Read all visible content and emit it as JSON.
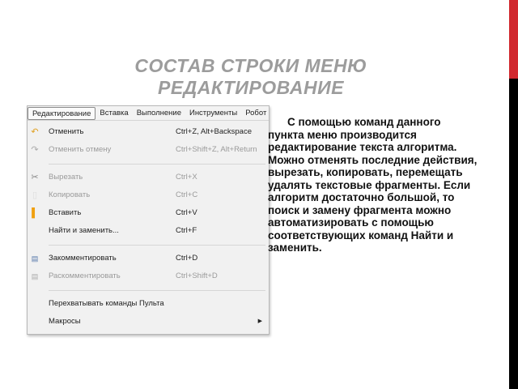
{
  "title": "СОСТАВ СТРОКИ МЕНЮ РЕДАКТИРОВАНИЕ",
  "accent_colors": {
    "red": "#d1282e",
    "black": "#000000",
    "title": "#9c9c9c"
  },
  "menubar": [
    "Редактирование",
    "Вставка",
    "Выполнение",
    "Инструменты",
    "Робот"
  ],
  "menu": [
    {
      "label": "Отменить",
      "shortcut": "Ctrl+Z, Alt+Backspace",
      "icon": "undo-icon",
      "disabled": false
    },
    {
      "label": "Отменить отмену",
      "shortcut": "Ctrl+Shift+Z, Alt+Return",
      "icon": "redo-icon",
      "disabled": true
    },
    {
      "label": "Вырезать",
      "shortcut": "Ctrl+X",
      "icon": "scissors-icon",
      "disabled": true
    },
    {
      "label": "Копировать",
      "shortcut": "Ctrl+C",
      "icon": "copy-icon",
      "disabled": true
    },
    {
      "label": "Вставить",
      "shortcut": "Ctrl+V",
      "icon": "paste-icon",
      "disabled": false
    },
    {
      "label": "Найти и заменить...",
      "shortcut": "Ctrl+F",
      "disabled": false
    },
    {
      "label": "Закомментировать",
      "shortcut": "Ctrl+D",
      "icon": "comment-icon",
      "disabled": false
    },
    {
      "label": "Раскомментировать",
      "shortcut": "Ctrl+Shift+D",
      "icon": "uncomment-icon",
      "disabled": true
    },
    {
      "label": "Перехватывать команды Пульта",
      "disabled": false
    },
    {
      "label": "Макросы",
      "submenu": true,
      "disabled": false
    }
  ],
  "body_text": "С помощью команд данного пункта меню производится редактирование текста алгоритма. Можно отменять последние действия, вырезать, копировать, перемещать удалять текстовые фрагменты. Если алгоритм достаточно большой, то поиск и замену фрагмента можно автоматизировать с помощью соответствующих команд Найти и заменить."
}
